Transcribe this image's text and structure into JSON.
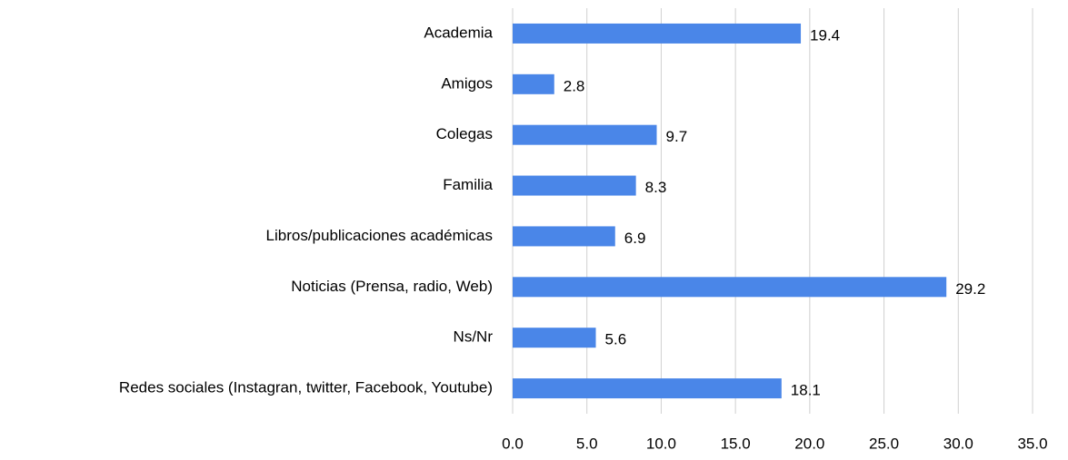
{
  "chart_data": {
    "type": "bar",
    "orientation": "horizontal",
    "categories": [
      "Academia",
      "Amigos",
      "Colegas",
      "Familia",
      "Libros/publicaciones académicas",
      "Noticias (Prensa, radio, Web)",
      "Ns/Nr",
      "Redes sociales (Instagran, twitter, Facebook, Youtube)"
    ],
    "values": [
      19.4,
      2.8,
      9.7,
      8.3,
      6.9,
      29.2,
      5.6,
      18.1
    ],
    "color": "#4a86e8",
    "xlim": [
      0,
      35
    ],
    "xticks": [
      {
        "value": 0,
        "label": "0.0"
      },
      {
        "value": 5,
        "label": "5.0"
      },
      {
        "value": 10,
        "label": "10.0"
      },
      {
        "value": 15,
        "label": "15.0"
      },
      {
        "value": 20,
        "label": "20.0"
      },
      {
        "value": 25,
        "label": "25.0"
      },
      {
        "value": 30,
        "label": "30.0"
      },
      {
        "value": 35,
        "label": "35.0"
      }
    ],
    "grid": true
  }
}
